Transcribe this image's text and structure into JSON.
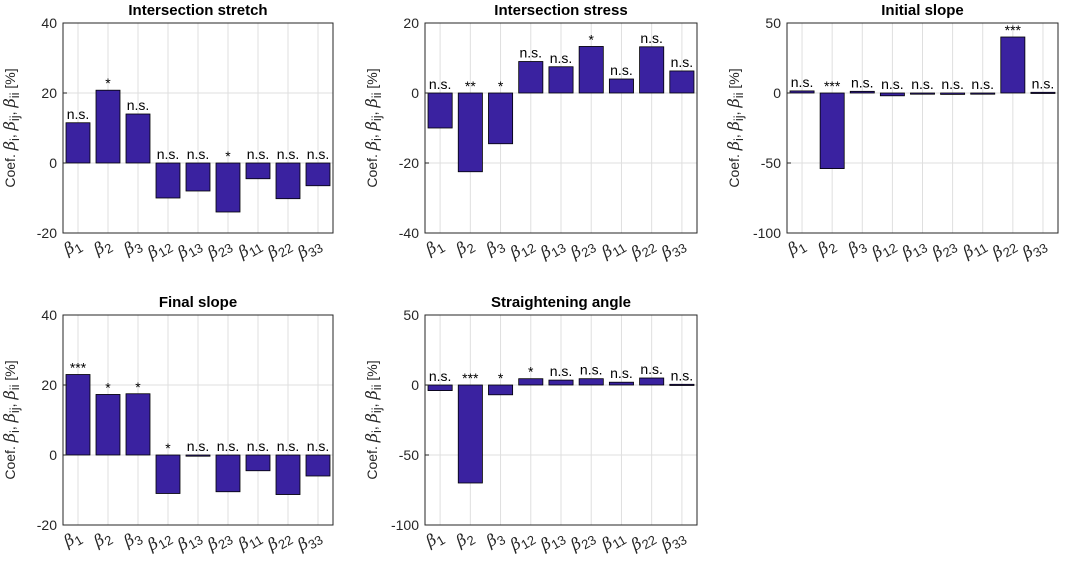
{
  "chart_data": [
    {
      "type": "bar",
      "title": "Intersection stretch",
      "ylabel": "Coef. β_i, β_ij, β_ii [%]",
      "ylim": [
        -20,
        40
      ],
      "yticks": [
        -20,
        0,
        20,
        40
      ],
      "categories": [
        "β1",
        "β2",
        "β3",
        "β12",
        "β13",
        "β23",
        "β11",
        "β22",
        "β33"
      ],
      "values": [
        11.5,
        20.8,
        14,
        -10,
        -8,
        -14,
        -4.5,
        -10.2,
        -6.5
      ],
      "significance": [
        "n.s.",
        "*",
        "n.s.",
        "n.s.",
        "n.s.",
        "*",
        "n.s.",
        "n.s.",
        "n.s."
      ]
    },
    {
      "type": "bar",
      "title": "Intersection stress",
      "ylabel": "Coef. β_i, β_ij, β_ii [%]",
      "ylim": [
        -40,
        20
      ],
      "yticks": [
        -40,
        -20,
        0,
        20
      ],
      "categories": [
        "β1",
        "β2",
        "β3",
        "β12",
        "β13",
        "β23",
        "β11",
        "β22",
        "β33"
      ],
      "values": [
        -10,
        -22.5,
        -14.5,
        9,
        7.5,
        13.3,
        4,
        13.2,
        6.3
      ],
      "significance": [
        "n.s.",
        "**",
        "*",
        "n.s.",
        "n.s.",
        "*",
        "n.s.",
        "n.s.",
        "n.s."
      ]
    },
    {
      "type": "bar",
      "title": "Initial slope",
      "ylabel": "Coef. β_i, β_ij, β_ii [%]",
      "ylim": [
        -100,
        50
      ],
      "yticks": [
        -100,
        -50,
        0,
        50
      ],
      "categories": [
        "β1",
        "β2",
        "β3",
        "β12",
        "β13",
        "β23",
        "β11",
        "β22",
        "β33"
      ],
      "values": [
        1.5,
        -54,
        1.2,
        -2,
        -0.5,
        -1,
        -0.5,
        40,
        0.5
      ],
      "significance": [
        "n.s.",
        "***",
        "n.s.",
        "n.s.",
        "n.s.",
        "n.s.",
        "n.s.",
        "***",
        "n.s."
      ]
    },
    {
      "type": "bar",
      "title": "Final slope",
      "ylabel": "Coef. β_i, β_ij, β_ii [%]",
      "ylim": [
        -20,
        40
      ],
      "yticks": [
        -20,
        0,
        20,
        40
      ],
      "categories": [
        "β1",
        "β2",
        "β3",
        "β12",
        "β13",
        "β23",
        "β11",
        "β22",
        "β33"
      ],
      "values": [
        23,
        17.3,
        17.5,
        -11,
        0,
        -10.5,
        -4.5,
        -11.3,
        -6
      ],
      "significance": [
        "***",
        "*",
        "*",
        "*",
        "n.s.",
        "n.s.",
        "n.s.",
        "n.s.",
        "n.s."
      ]
    },
    {
      "type": "bar",
      "title": "Straightening angle",
      "ylabel": "Coef. β_i, β_ij, β_ii [%]",
      "ylim": [
        -100,
        50
      ],
      "yticks": [
        -100,
        -50,
        0,
        50
      ],
      "categories": [
        "β1",
        "β2",
        "β3",
        "β12",
        "β13",
        "β23",
        "β11",
        "β22",
        "β33"
      ],
      "values": [
        -4,
        -70,
        -7,
        4.5,
        3.5,
        4.5,
        2,
        5,
        0.5
      ],
      "significance": [
        "n.s.",
        "***",
        "*",
        "*",
        "n.s.",
        "n.s.",
        "n.s.",
        "n.s.",
        "n.s."
      ]
    }
  ],
  "style": {
    "bar_color": "#3a22a0",
    "bar_edge": "#000000",
    "axis_color": "#262626",
    "grid_color": "#dfdfdf"
  }
}
